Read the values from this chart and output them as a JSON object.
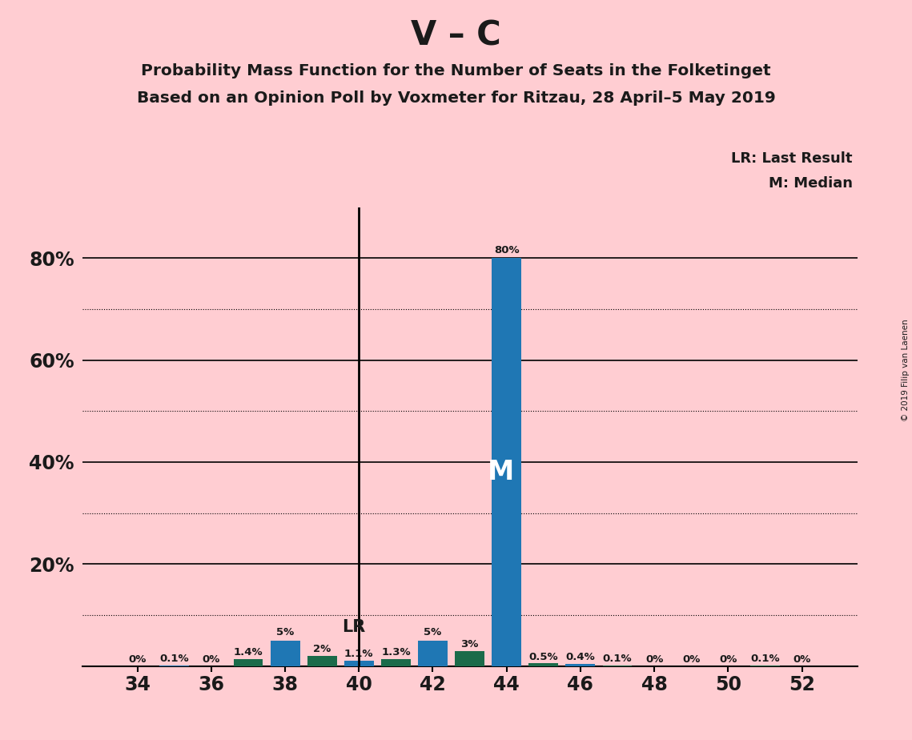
{
  "title_main": "V – C",
  "title_sub1": "Probability Mass Function for the Number of Seats in the Folketinget",
  "title_sub2": "Based on an Opinion Poll by Voxmeter for Ritzau, 28 April–5 May 2019",
  "background_color": "#FFCDD2",
  "seats": [
    34,
    35,
    36,
    37,
    38,
    39,
    40,
    41,
    42,
    43,
    44,
    45,
    46,
    47,
    48,
    49,
    50,
    51,
    52
  ],
  "values": [
    0.0,
    0.1,
    0.0,
    1.4,
    5.0,
    2.0,
    1.1,
    1.3,
    5.0,
    3.0,
    80.0,
    0.5,
    0.4,
    0.1,
    0.0,
    0.0,
    0.0,
    0.1,
    0.0
  ],
  "labels": [
    "0%",
    "0.1%",
    "0%",
    "1.4%",
    "5%",
    "2%",
    "1.1%",
    "1.3%",
    "5%",
    "3%",
    "80%",
    "0.5%",
    "0.4%",
    "0.1%",
    "0%",
    "0%",
    "0%",
    "0.1%",
    "0%"
  ],
  "bar_colors": [
    "#1B6B4A",
    "#1F77B4",
    "#1B6B4A",
    "#1B6B4A",
    "#1F77B4",
    "#1B6B4A",
    "#1F77B4",
    "#1B6B4A",
    "#1F77B4",
    "#1B6B4A",
    "#1F77B4",
    "#1B6B4A",
    "#1F77B4",
    "#1B6B4A",
    "#1F77B4",
    "#1B6B4A",
    "#1F77B4",
    "#1B6B4A",
    "#1F77B4"
  ],
  "median_seat": 44,
  "lr_seat": 40,
  "bar_color_blue": "#1F77B4",
  "bar_color_green": "#1B6B4A",
  "text_color": "#1a1a1a",
  "copyright_text": "© 2019 Filip van Laenen",
  "legend_lr": "LR: Last Result",
  "legend_m": "M: Median",
  "xtick_positions": [
    34,
    36,
    38,
    40,
    42,
    44,
    46,
    48,
    50,
    52
  ]
}
